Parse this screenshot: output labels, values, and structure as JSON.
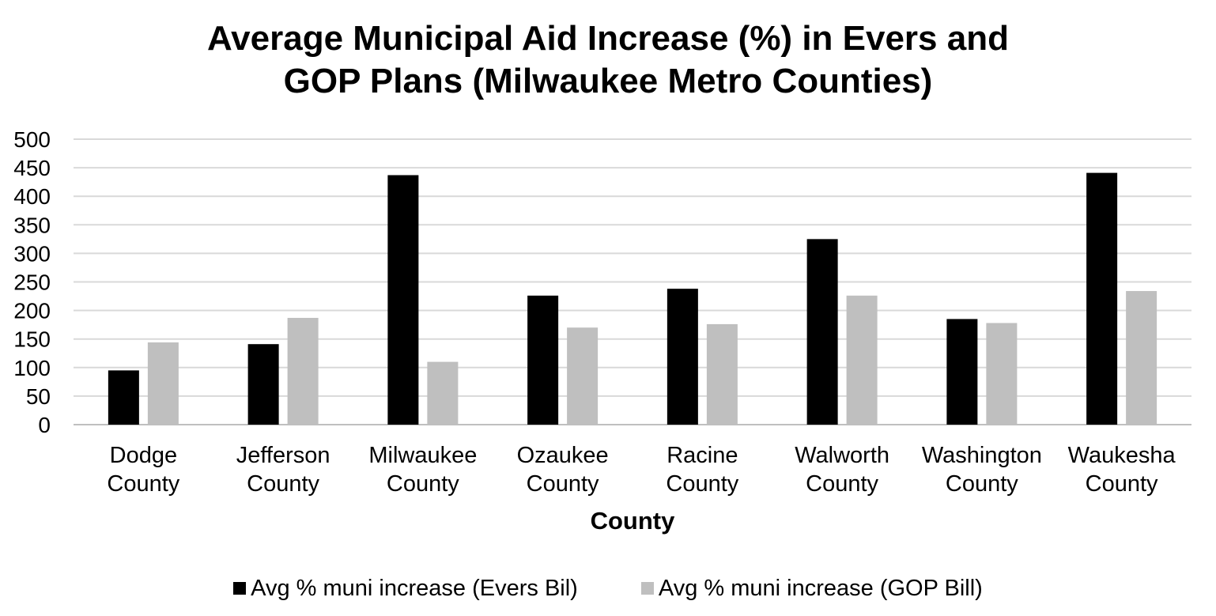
{
  "chart_data": {
    "type": "bar",
    "title_line1": "Average Municipal Aid Increase (%) in Evers and",
    "title_line2": "GOP Plans (Milwaukee Metro Counties)",
    "xlabel": "County",
    "ylabel": "",
    "ylim": [
      0,
      500
    ],
    "yticks": [
      "500",
      "450",
      "400",
      "350",
      "300",
      "250",
      "200",
      "150",
      "100",
      "50",
      "0"
    ],
    "grid": true,
    "legend_position": "bottom",
    "categories": [
      [
        "Dodge",
        "County"
      ],
      [
        "Jefferson",
        "County"
      ],
      [
        "Milwaukee",
        "County"
      ],
      [
        "Ozaukee",
        "County"
      ],
      [
        "Racine",
        "County"
      ],
      [
        "Walworth",
        "County"
      ],
      [
        "Washington",
        "County"
      ],
      [
        "Waukesha",
        "County"
      ]
    ],
    "series": [
      {
        "name": "Avg % muni increase (Evers Bil)",
        "color": "#000000",
        "values": [
          95,
          141,
          437,
          226,
          238,
          325,
          185,
          441
        ]
      },
      {
        "name": "Avg % muni increase (GOP Bill)",
        "color": "#bfbfbf",
        "values": [
          144,
          187,
          110,
          170,
          176,
          226,
          178,
          234
        ]
      }
    ]
  }
}
